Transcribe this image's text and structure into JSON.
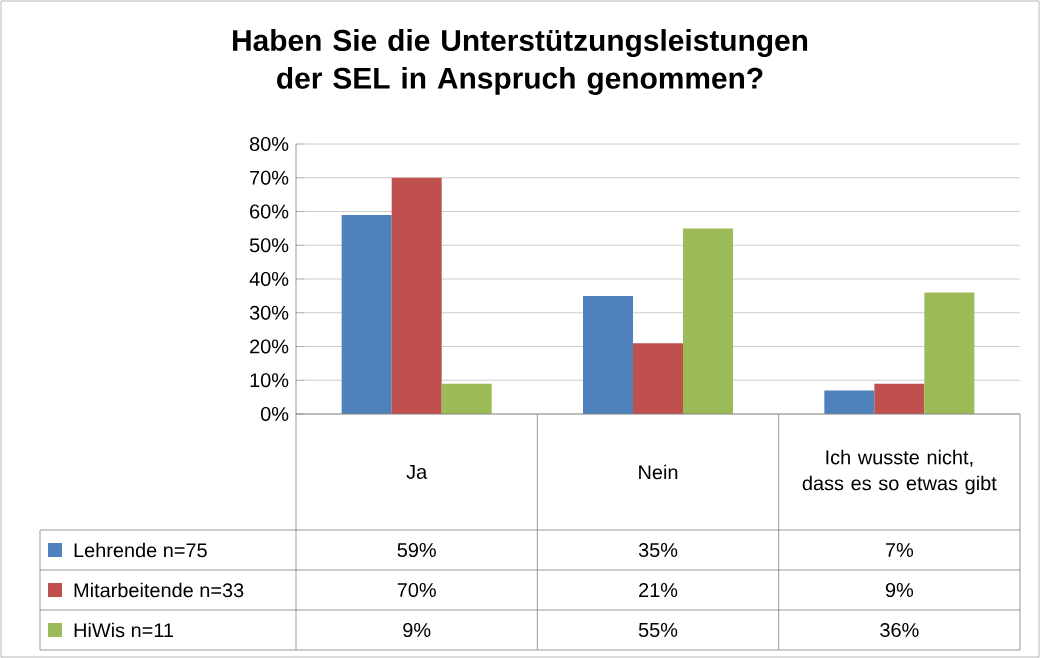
{
  "chart_data": {
    "type": "bar",
    "title": "Haben Sie die Unterstützungsleistungen der SEL in Anspruch genommen?",
    "categories": [
      "Ja",
      "Nein",
      "Ich wusste nicht, dass es so etwas gibt"
    ],
    "series": [
      {
        "name": "Lehrende n=75",
        "color": "#4f81bd",
        "values": [
          59,
          35,
          7
        ],
        "value_labels": [
          "59%",
          "35%",
          "7%"
        ]
      },
      {
        "name": "Mitarbeitende n=33",
        "color": "#c0504d",
        "values": [
          70,
          21,
          9
        ],
        "value_labels": [
          "70%",
          "21%",
          "9%"
        ]
      },
      {
        "name": "HiWis n=11",
        "color": "#9bbb59",
        "values": [
          9,
          55,
          36
        ],
        "value_labels": [
          "9%",
          "55%",
          "36%"
        ]
      }
    ],
    "ylim": [
      0,
      80
    ],
    "yticks": [
      {
        "value": 0,
        "label": "0%"
      },
      {
        "value": 10,
        "label": "10%"
      },
      {
        "value": 20,
        "label": "20%"
      },
      {
        "value": 30,
        "label": "30%"
      },
      {
        "value": 40,
        "label": "40%"
      },
      {
        "value": 50,
        "label": "50%"
      },
      {
        "value": 60,
        "label": "60%"
      },
      {
        "value": 70,
        "label": "70%"
      },
      {
        "value": 80,
        "label": "80%"
      }
    ],
    "grid": "y",
    "legend": "bottom left"
  }
}
